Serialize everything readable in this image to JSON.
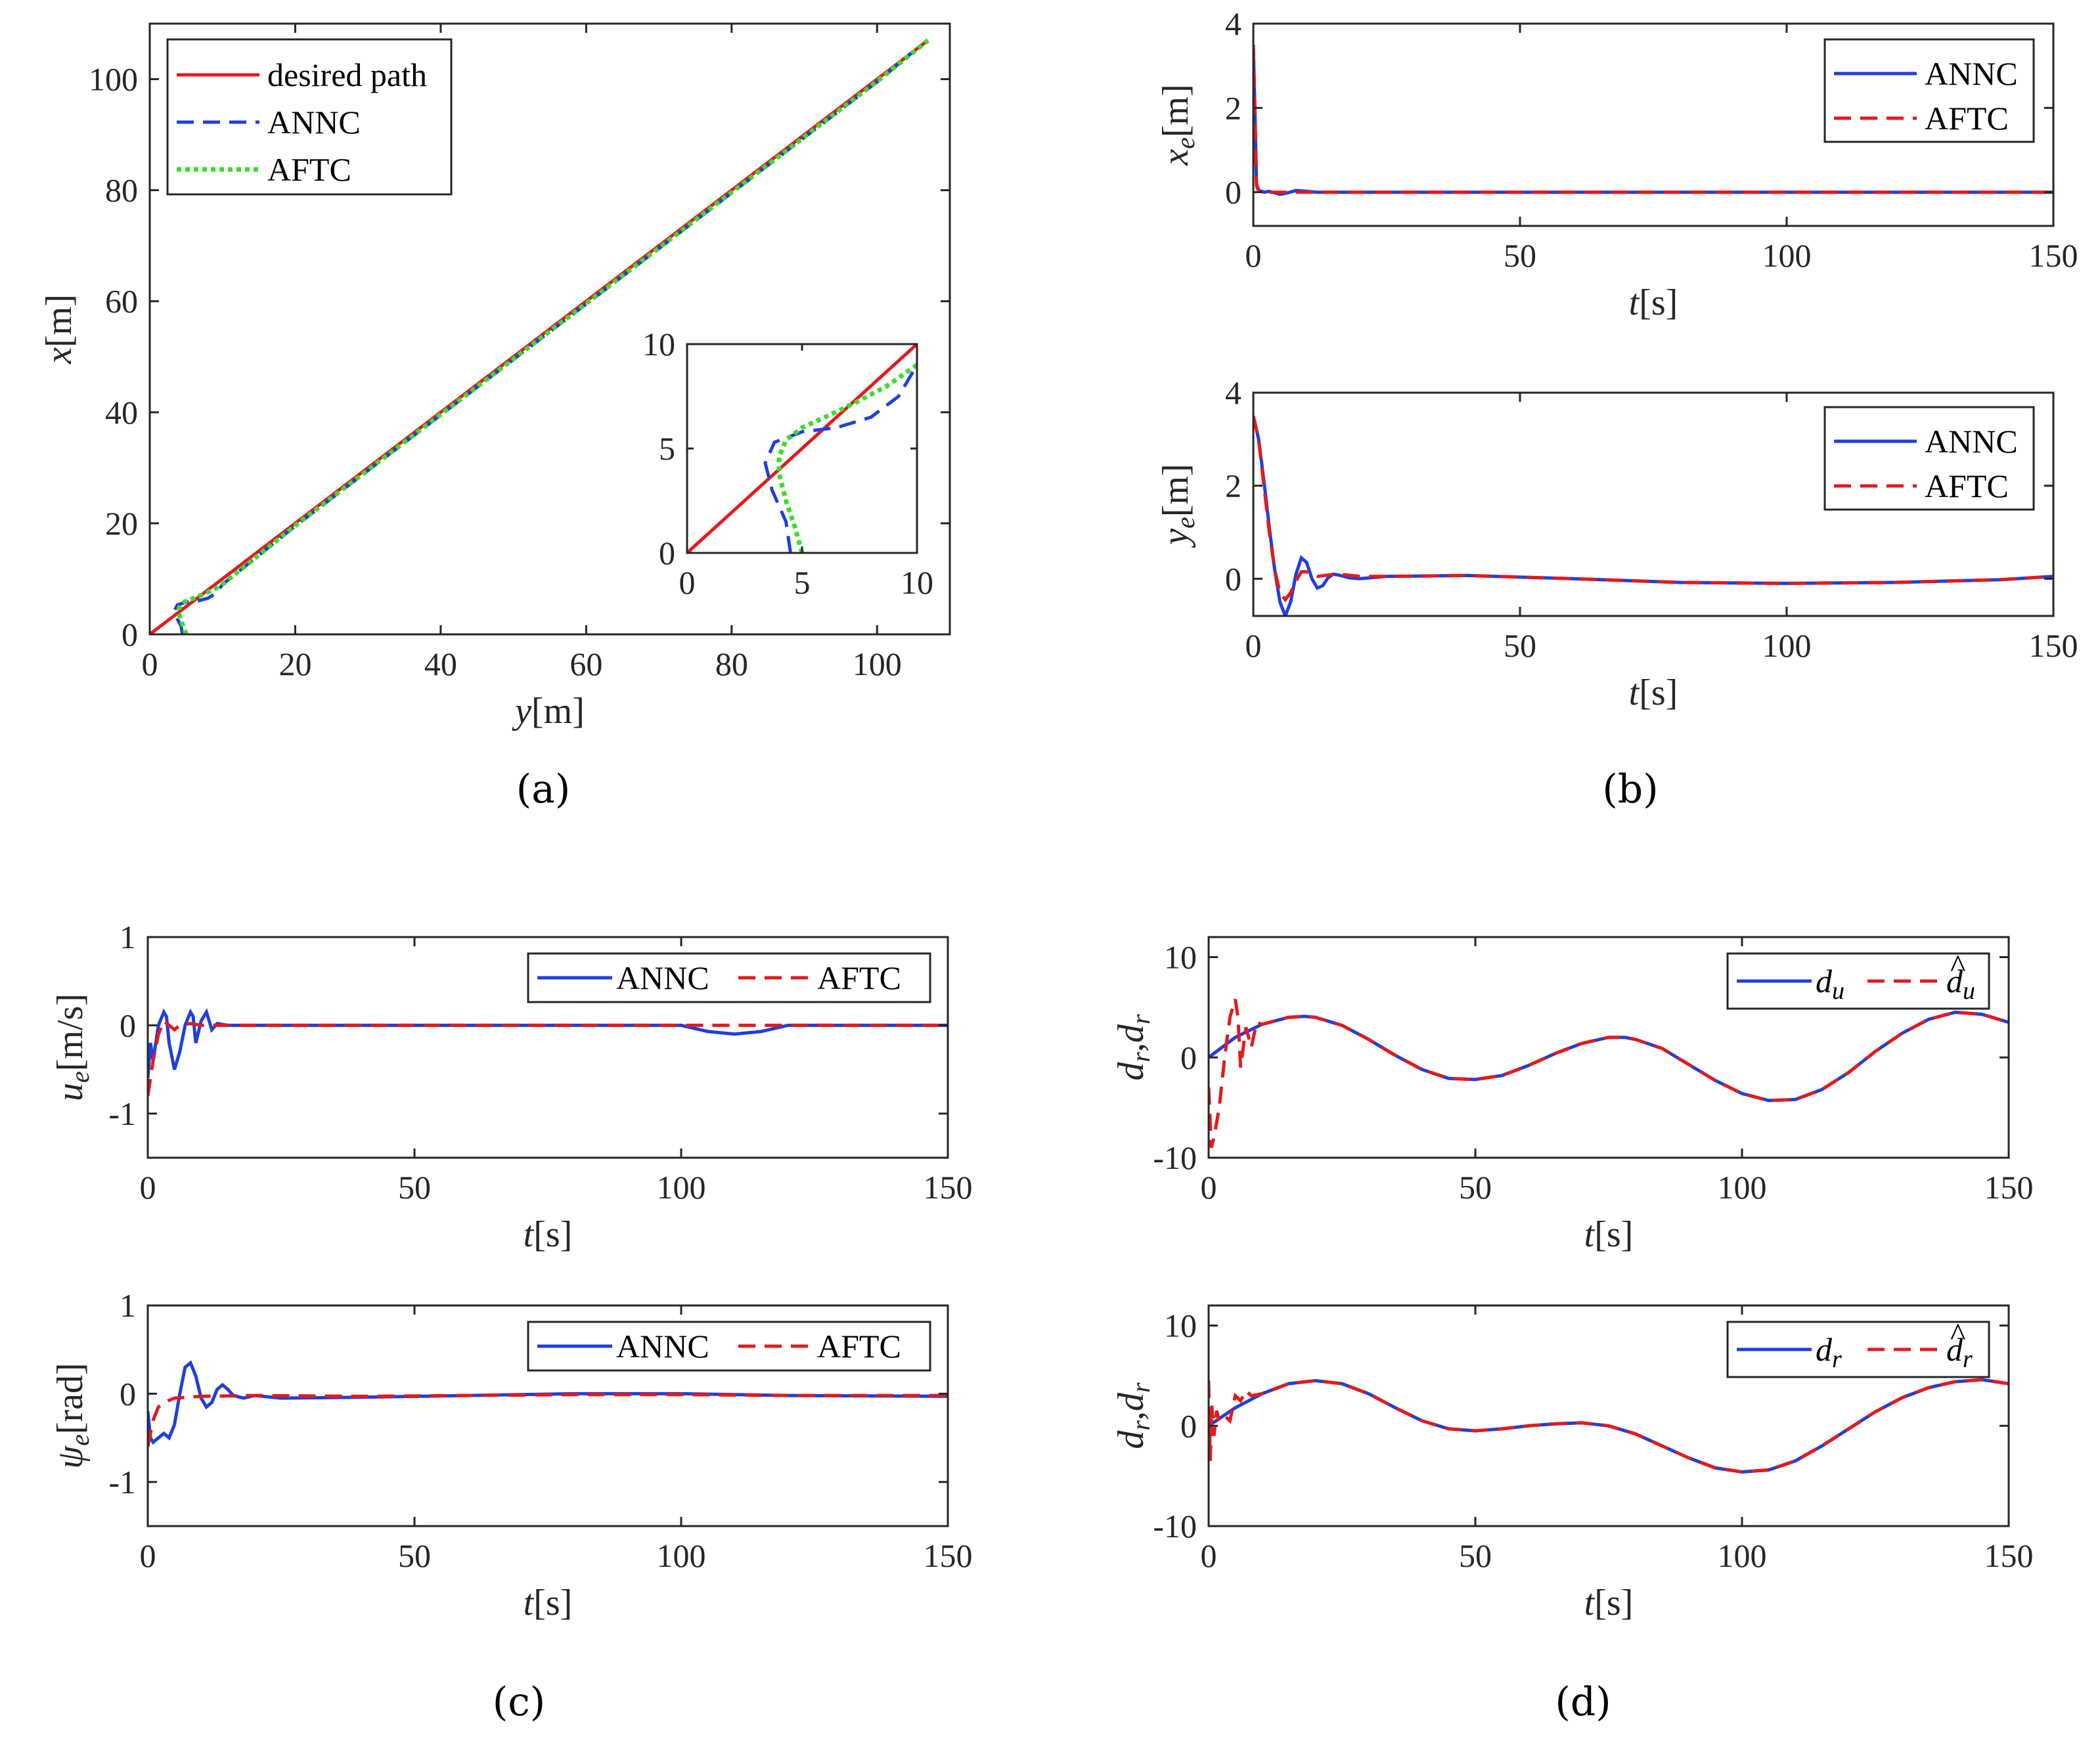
{
  "colors": {
    "desired": "#e41a1c",
    "annc": "#1f3fe0",
    "aftc": "#e41a1c",
    "aftc_path": "#3ddc2c",
    "axis": "#262626"
  },
  "chart_data": [
    {
      "id": "a",
      "type": "line",
      "panel_label": "a",
      "xlabel": {
        "var": "y",
        "unit": "[m]"
      },
      "ylabel": {
        "var": "x",
        "unit": "[m]"
      },
      "xlim": [
        0,
        110
      ],
      "ylim": [
        0,
        110
      ],
      "xticks": [
        0,
        20,
        40,
        60,
        80,
        100
      ],
      "yticks": [
        0,
        20,
        40,
        60,
        80,
        100
      ],
      "legend": [
        "desired path",
        "ANNC",
        "AFTC"
      ],
      "series": [
        {
          "name": "desired path",
          "style": "solid",
          "x": [
            0,
            107
          ],
          "y": [
            0,
            107
          ]
        },
        {
          "name": "ANNC",
          "style": "dashed",
          "x": [
            4.5,
            4.3,
            3.7,
            3.4,
            3.8,
            5.0,
            6.5,
            8.0,
            9.2,
            10,
            20,
            40,
            60,
            80,
            100,
            105
          ],
          "y": [
            0,
            1.5,
            3.0,
            4.3,
            5.3,
            5.8,
            6.0,
            6.5,
            7.5,
            9.0,
            19.5,
            39.5,
            59.5,
            79.5,
            99.5,
            105
          ]
        },
        {
          "name": "AFTC",
          "style": "dotted",
          "x": [
            5.0,
            4.7,
            4.3,
            4.0,
            4.0,
            4.3,
            5.0,
            6.2,
            7.5,
            8.7,
            10,
            20,
            40,
            60,
            80,
            100,
            107
          ],
          "y": [
            0,
            1.2,
            2.5,
            3.8,
            4.6,
            5.4,
            6.0,
            6.6,
            7.3,
            8.0,
            9.0,
            19.6,
            39.6,
            59.6,
            79.6,
            99.6,
            107
          ]
        }
      ],
      "inset": {
        "xlim": [
          0,
          10
        ],
        "ylim": [
          0,
          10
        ],
        "xticks": [
          0,
          5,
          10
        ],
        "yticks": [
          0,
          5,
          10
        ]
      }
    },
    {
      "id": "b1",
      "type": "line",
      "panel_label": "b",
      "xlabel": {
        "var": "t",
        "unit": "[s]"
      },
      "ylabel": {
        "var": "x",
        "sub": "e",
        "unit": "[m]"
      },
      "xlim": [
        0,
        150
      ],
      "ylim": [
        -0.8,
        4
      ],
      "xticks": [
        0,
        50,
        100,
        150
      ],
      "yticks": [
        0,
        2,
        4
      ],
      "legend": [
        "ANNC",
        "AFTC"
      ],
      "series": [
        {
          "name": "ANNC",
          "style": "solid",
          "x": [
            0,
            0.3,
            0.6,
            1,
            2,
            3,
            5,
            6,
            8,
            10,
            12,
            20,
            150
          ],
          "y": [
            3.5,
            2.0,
            0.2,
            0.05,
            0.0,
            0.02,
            -0.05,
            -0.03,
            0.04,
            0.02,
            0.0,
            0.0,
            0.0
          ]
        },
        {
          "name": "AFTC",
          "style": "dashed",
          "x": [
            0,
            0.3,
            0.6,
            1,
            2,
            150
          ],
          "y": [
            3.5,
            2.0,
            0.15,
            0.03,
            0.0,
            0.0
          ]
        }
      ]
    },
    {
      "id": "b2",
      "type": "line",
      "xlabel": {
        "var": "t",
        "unit": "[s]"
      },
      "ylabel": {
        "var": "y",
        "sub": "e",
        "unit": "[m]"
      },
      "xlim": [
        0,
        150
      ],
      "ylim": [
        -0.8,
        4
      ],
      "xticks": [
        0,
        50,
        100,
        150
      ],
      "yticks": [
        0,
        2,
        4
      ],
      "legend": [
        "ANNC",
        "AFTC"
      ],
      "series": [
        {
          "name": "ANNC",
          "style": "solid",
          "x": [
            0,
            1,
            2,
            3,
            4,
            5,
            6,
            7,
            8,
            9,
            10,
            11,
            12,
            13,
            14,
            15,
            16,
            18,
            20,
            25,
            40,
            60,
            80,
            100,
            120,
            140,
            150
          ],
          "y": [
            3.5,
            3.0,
            2.1,
            1.1,
            0.2,
            -0.5,
            -0.8,
            -0.5,
            0.1,
            0.45,
            0.35,
            0.0,
            -0.2,
            -0.15,
            0.02,
            0.1,
            0.08,
            0.02,
            0.0,
            0.05,
            0.07,
            0.0,
            -0.08,
            -0.1,
            -0.08,
            -0.02,
            0.05
          ]
        },
        {
          "name": "AFTC",
          "style": "dashed",
          "x": [
            0,
            1,
            2,
            3,
            4,
            5,
            6,
            7,
            8,
            9,
            10,
            12,
            14,
            16,
            20,
            25,
            40,
            60,
            80,
            100,
            120,
            140,
            150
          ],
          "y": [
            3.5,
            3.0,
            2.0,
            1.0,
            0.2,
            -0.3,
            -0.45,
            -0.3,
            -0.05,
            0.15,
            0.15,
            0.05,
            0.08,
            0.1,
            0.05,
            0.05,
            0.07,
            0.0,
            -0.08,
            -0.1,
            -0.08,
            -0.02,
            0.05
          ]
        }
      ]
    },
    {
      "id": "c1",
      "type": "line",
      "panel_label": "c",
      "xlabel": {
        "var": "t",
        "unit": "[s]"
      },
      "ylabel": {
        "var": "u",
        "sub": "e",
        "unit": "[m/s]"
      },
      "xlim": [
        0,
        150
      ],
      "ylim": [
        -1.5,
        1
      ],
      "xticks": [
        0,
        50,
        100,
        150
      ],
      "yticks": [
        -1,
        0,
        1
      ],
      "legend": [
        "ANNC",
        "AFTC"
      ],
      "series": [
        {
          "name": "ANNC",
          "style": "solid",
          "x": [
            0,
            0.5,
            1,
            2,
            3,
            3.5,
            4,
            5,
            6,
            7,
            8,
            8.5,
            9,
            10,
            11,
            11.5,
            12,
            13,
            15,
            20,
            100,
            105,
            110,
            115,
            120,
            150
          ],
          "y": [
            -0.6,
            -0.2,
            -0.4,
            0.0,
            0.15,
            0.1,
            -0.2,
            -0.5,
            -0.3,
            0.0,
            0.15,
            0.1,
            -0.2,
            0.05,
            0.15,
            0.05,
            -0.05,
            0.02,
            0.0,
            0.0,
            0.0,
            -0.07,
            -0.1,
            -0.07,
            0.0,
            0.0
          ]
        },
        {
          "name": "AFTC",
          "style": "dashed",
          "x": [
            0,
            1,
            2,
            3,
            4,
            5,
            6,
            8,
            10,
            150
          ],
          "y": [
            -0.8,
            -0.4,
            -0.1,
            0.05,
            0.0,
            -0.05,
            0.0,
            0.02,
            0.0,
            0.0
          ]
        }
      ]
    },
    {
      "id": "c2",
      "type": "line",
      "xlabel": {
        "var": "t",
        "unit": "[s]"
      },
      "ylabel": {
        "var": "ψ",
        "sub": "e",
        "unit": "[rad]"
      },
      "xlim": [
        0,
        150
      ],
      "ylim": [
        -1.5,
        1
      ],
      "xticks": [
        0,
        50,
        100,
        150
      ],
      "yticks": [
        -1,
        0,
        1
      ],
      "legend": [
        "ANNC",
        "AFTC"
      ],
      "series": [
        {
          "name": "ANNC",
          "style": "solid",
          "x": [
            0,
            0.5,
            1,
            2,
            3,
            4,
            5,
            6,
            7,
            8,
            9,
            10,
            11,
            12,
            13,
            14,
            15,
            16,
            18,
            20,
            25,
            40,
            60,
            80,
            100,
            120,
            150
          ],
          "y": [
            -0.2,
            -0.5,
            -0.55,
            -0.5,
            -0.45,
            -0.5,
            -0.35,
            0.0,
            0.3,
            0.35,
            0.2,
            -0.05,
            -0.15,
            -0.1,
            0.05,
            0.1,
            0.05,
            -0.02,
            -0.05,
            -0.02,
            -0.05,
            -0.04,
            -0.02,
            0.0,
            0.0,
            -0.02,
            -0.03
          ]
        },
        {
          "name": "AFTC",
          "style": "dashed",
          "x": [
            0,
            1,
            2,
            3,
            5,
            10,
            20,
            40,
            60,
            80,
            100,
            120,
            150
          ],
          "y": [
            -0.6,
            -0.3,
            -0.15,
            -0.1,
            -0.05,
            -0.03,
            -0.02,
            -0.03,
            -0.02,
            -0.01,
            -0.01,
            -0.02,
            -0.02
          ]
        }
      ]
    },
    {
      "id": "d1",
      "type": "line",
      "panel_label": "d",
      "xlabel": {
        "var": "t",
        "unit": "[s]"
      },
      "ylabel": {
        "text": "d",
        "sub": "r",
        "comma": ",",
        "hat": "d",
        "hat_sub": "r"
      },
      "xlim": [
        0,
        150
      ],
      "ylim": [
        -10,
        12
      ],
      "xticks": [
        0,
        50,
        100,
        150
      ],
      "yticks": [
        -10,
        0,
        10
      ],
      "legend": [
        {
          "var": "d",
          "sub": "u"
        },
        {
          "var": "d",
          "sub": "u",
          "hat": true
        }
      ],
      "series": [
        {
          "name": "d_u",
          "style": "solid",
          "x": [
            0,
            5,
            10,
            15,
            18,
            20,
            25,
            30,
            35,
            40,
            45,
            50,
            55,
            60,
            65,
            70,
            75,
            78,
            80,
            85,
            90,
            95,
            100,
            105,
            110,
            115,
            120,
            125,
            130,
            135,
            140,
            145,
            150
          ],
          "y": [
            0,
            2.0,
            3.3,
            4.0,
            4.1,
            4.0,
            3.2,
            1.8,
            0.2,
            -1.2,
            -2.1,
            -2.2,
            -1.8,
            -0.8,
            0.4,
            1.4,
            2.0,
            2.0,
            1.8,
            0.9,
            -0.7,
            -2.3,
            -3.6,
            -4.3,
            -4.2,
            -3.2,
            -1.5,
            0.6,
            2.4,
            3.8,
            4.5,
            4.3,
            3.5
          ]
        },
        {
          "name": "d_u hat",
          "style": "dashed",
          "x": [
            0,
            0.5,
            1,
            2,
            3,
            4,
            5,
            5.5,
            6,
            7,
            8,
            9,
            10,
            15,
            18,
            20,
            25,
            30,
            35,
            40,
            45,
            50,
            55,
            60,
            65,
            70,
            75,
            78,
            80,
            85,
            90,
            95,
            100,
            105,
            110,
            115,
            120,
            125,
            130,
            135,
            140,
            145,
            150
          ],
          "y": [
            -3,
            -9,
            -8,
            -5,
            0,
            4,
            5.8,
            4,
            -1,
            3,
            1,
            3.5,
            3.3,
            4.0,
            4.1,
            4.0,
            3.2,
            1.8,
            0.2,
            -1.2,
            -2.1,
            -2.2,
            -1.8,
            -0.8,
            0.4,
            1.4,
            2.0,
            2.0,
            1.8,
            0.9,
            -0.7,
            -2.3,
            -3.6,
            -4.3,
            -4.2,
            -3.2,
            -1.5,
            0.6,
            2.4,
            3.8,
            4.5,
            4.3,
            3.5
          ]
        }
      ]
    },
    {
      "id": "d2",
      "type": "line",
      "xlabel": {
        "var": "t",
        "unit": "[s]"
      },
      "ylabel": {
        "text": "d",
        "sub": "r",
        "comma": ",",
        "hat": "d",
        "hat_sub": "r"
      },
      "xlim": [
        0,
        150
      ],
      "ylim": [
        -10,
        12
      ],
      "xticks": [
        0,
        50,
        100,
        150
      ],
      "yticks": [
        -10,
        0,
        10
      ],
      "legend": [
        {
          "var": "d",
          "sub": "r"
        },
        {
          "var": "d",
          "sub": "r",
          "hat": true
        }
      ],
      "series": [
        {
          "name": "d_r",
          "style": "solid",
          "x": [
            0,
            5,
            10,
            15,
            20,
            25,
            30,
            35,
            40,
            45,
            50,
            55,
            60,
            65,
            70,
            75,
            80,
            85,
            90,
            95,
            100,
            105,
            110,
            115,
            120,
            125,
            130,
            135,
            140,
            145,
            150
          ],
          "y": [
            0,
            1.8,
            3.2,
            4.2,
            4.5,
            4.2,
            3.2,
            1.8,
            0.5,
            -0.3,
            -0.5,
            -0.3,
            0.0,
            0.2,
            0.3,
            0.0,
            -0.8,
            -2.0,
            -3.2,
            -4.2,
            -4.6,
            -4.4,
            -3.5,
            -2.0,
            -0.3,
            1.4,
            2.8,
            3.8,
            4.4,
            4.6,
            4.2
          ]
        },
        {
          "name": "d_r hat",
          "style": "dashed",
          "x": [
            0,
            0.3,
            0.6,
            1,
            1.5,
            2,
            3,
            4,
            5,
            6,
            7,
            8,
            10,
            15,
            20,
            25,
            30,
            35,
            40,
            45,
            50,
            55,
            60,
            65,
            70,
            75,
            80,
            85,
            90,
            95,
            100,
            105,
            110,
            115,
            120,
            125,
            130,
            135,
            140,
            145,
            150
          ],
          "y": [
            4.5,
            -3.5,
            2.0,
            -1.0,
            1.5,
            0.5,
            1.0,
            0.5,
            3.0,
            2.5,
            3.5,
            3.0,
            3.2,
            4.2,
            4.5,
            4.2,
            3.2,
            1.8,
            0.5,
            -0.3,
            -0.5,
            -0.3,
            0.0,
            0.2,
            0.3,
            0.0,
            -0.8,
            -2.0,
            -3.2,
            -4.2,
            -4.6,
            -4.4,
            -3.5,
            -2.0,
            -0.3,
            1.4,
            2.8,
            3.8,
            4.4,
            4.6,
            4.2
          ]
        }
      ]
    }
  ],
  "panel_labels": {
    "a": "(a)",
    "b": "(b)",
    "c": "(c)",
    "d": "(d)"
  }
}
